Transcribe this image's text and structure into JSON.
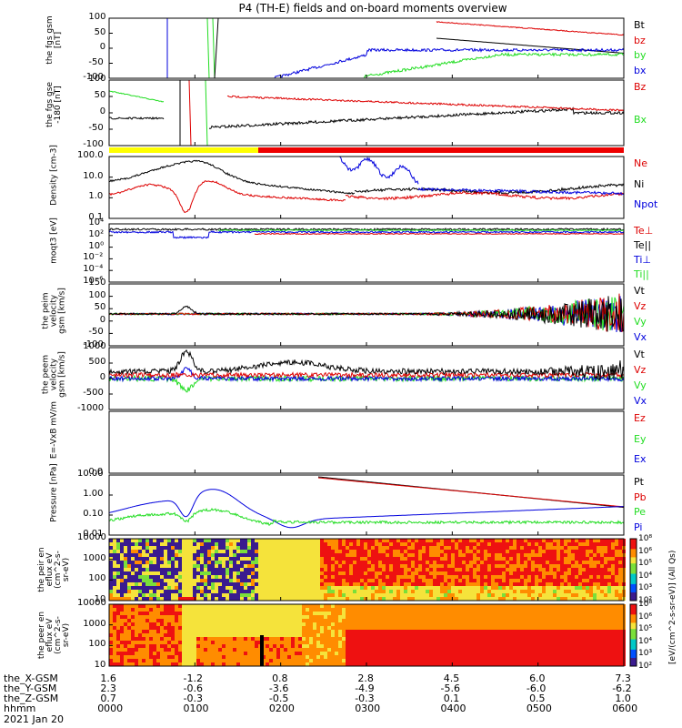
{
  "title": "P4 (TH-E) fields and on-board moments overview",
  "date": "2021 Jan 20",
  "colors": {
    "black": "#000000",
    "red": "#dd0000",
    "green": "#22dd22",
    "blue": "#0000dd",
    "yellow": "#ffff00"
  },
  "panels": [
    {
      "id": "fgs",
      "ylabel": [
        "the",
        "fgs",
        "gsm",
        "[nT]"
      ],
      "yticks": [
        "100",
        "50",
        "0",
        "-50",
        "-100"
      ],
      "labels": [
        {
          "t": "Bt",
          "c": "black"
        },
        {
          "t": "bz",
          "c": "red"
        },
        {
          "t": "by",
          "c": "green"
        },
        {
          "t": "bx",
          "c": "blue"
        }
      ]
    },
    {
      "id": "fgs2",
      "ylabel": [
        "the",
        "fgs",
        "gse",
        "-180",
        "[nT]"
      ],
      "yticks": [
        "100",
        "50",
        "0",
        "-50",
        "-100"
      ],
      "labels": [
        {
          "t": "Bz",
          "c": "red"
        },
        {
          "t": "Bx",
          "c": "green"
        }
      ]
    },
    {
      "id": "density",
      "ylabel": [
        "Density",
        "[cm-3]"
      ],
      "yticks": [
        "100.0",
        "10.0",
        "1.0",
        "0.1"
      ],
      "labels": [
        {
          "t": "Ne",
          "c": "red"
        },
        {
          "t": "Ni",
          "c": "black"
        },
        {
          "t": "Npot",
          "c": "blue"
        }
      ]
    },
    {
      "id": "temp",
      "ylabel": [
        "moqt3",
        "[eV]"
      ],
      "yticks": [
        "10⁴",
        "10²",
        "10⁰",
        "10⁻²",
        "10⁻⁴",
        "10⁻⁶"
      ],
      "labels": [
        {
          "t": "Te⊥",
          "c": "red"
        },
        {
          "t": "Te||",
          "c": "black"
        },
        {
          "t": "Ti⊥",
          "c": "blue"
        },
        {
          "t": "Ti||",
          "c": "green"
        }
      ]
    },
    {
      "id": "vel_e",
      "ylabel": [
        "the",
        "peim",
        "velocity",
        "gsm",
        "[km/s]"
      ],
      "yticks": [
        "150",
        "100",
        "50",
        "0",
        "-50",
        "-100"
      ],
      "labels": [
        {
          "t": "Vt",
          "c": "black"
        },
        {
          "t": "Vz",
          "c": "red"
        },
        {
          "t": "Vy",
          "c": "green"
        },
        {
          "t": "Vx",
          "c": "blue"
        }
      ]
    },
    {
      "id": "vel_i",
      "ylabel": [
        "the",
        "peem",
        "velocity",
        "gsm",
        "[km/s]"
      ],
      "yticks": [
        "1000",
        "500",
        "0",
        "-500",
        "-1000"
      ],
      "labels": [
        {
          "t": "Vt",
          "c": "black"
        },
        {
          "t": "Vz",
          "c": "red"
        },
        {
          "t": "Vy",
          "c": "green"
        },
        {
          "t": "Vx",
          "c": "blue"
        }
      ]
    },
    {
      "id": "efield",
      "ylabel": [
        "E=-VxB",
        "mV/m"
      ],
      "yticks": [
        "0.0"
      ],
      "labels": [
        {
          "t": "Ez",
          "c": "red"
        },
        {
          "t": "Ey",
          "c": "green"
        },
        {
          "t": "Ex",
          "c": "blue"
        }
      ]
    },
    {
      "id": "pressure",
      "ylabel": [
        "Pressure",
        "[nPa]"
      ],
      "yticks": [
        "10.00",
        "1.00",
        "0.10",
        "0.01"
      ],
      "labels": [
        {
          "t": "Pt",
          "c": "black"
        },
        {
          "t": "Pb",
          "c": "red"
        },
        {
          "t": "Pe",
          "c": "green"
        },
        {
          "t": "Pi",
          "c": "blue"
        }
      ]
    },
    {
      "id": "spec_i",
      "ylabel": [
        "the",
        "peir",
        "en",
        "eflux",
        "eV",
        "(cm^2-s-",
        "sr-eV)"
      ],
      "yticks": [
        "10000",
        "1000",
        "100",
        "10"
      ]
    },
    {
      "id": "spec_e",
      "ylabel": [
        "the",
        "peer",
        "en",
        "eflux",
        "eV",
        "(cm^2-s-",
        "sr-eV)"
      ],
      "yticks": [
        "10000",
        "1000",
        "100",
        "10"
      ]
    }
  ],
  "colorbar_i": {
    "ticks": [
      "10⁸",
      "10⁶",
      "10⁵",
      "10⁴",
      "10³",
      "10²"
    ],
    "label": "[eV/(cm^2-s-sr-eV)] (All Qs)"
  },
  "colorbar_e": {
    "ticks": [
      "10⁸",
      "10⁶",
      "10⁵",
      "10⁴",
      "10³",
      "10²"
    ],
    "label": "[eV/(cm^2-s-sr-eV)]"
  },
  "ephemeris": {
    "rows": [
      {
        "name": "the_X-GSM",
        "values": [
          "1.6",
          "-1.2",
          "0.8",
          "2.8",
          "4.5",
          "6.0",
          "7.3"
        ]
      },
      {
        "name": "the_Y-GSM",
        "values": [
          "2.3",
          "-0.6",
          "-3.6",
          "-4.9",
          "-5.6",
          "-6.0",
          "-6.2"
        ]
      },
      {
        "name": "the_Z-GSM",
        "values": [
          "0.7",
          "-0.3",
          "-0.5",
          "-0.3",
          "0.1",
          "0.5",
          "1.0"
        ]
      },
      {
        "name": "hhmm",
        "values": [
          "0000",
          "0100",
          "0200",
          "0300",
          "0400",
          "0500",
          "0600"
        ]
      }
    ]
  }
}
